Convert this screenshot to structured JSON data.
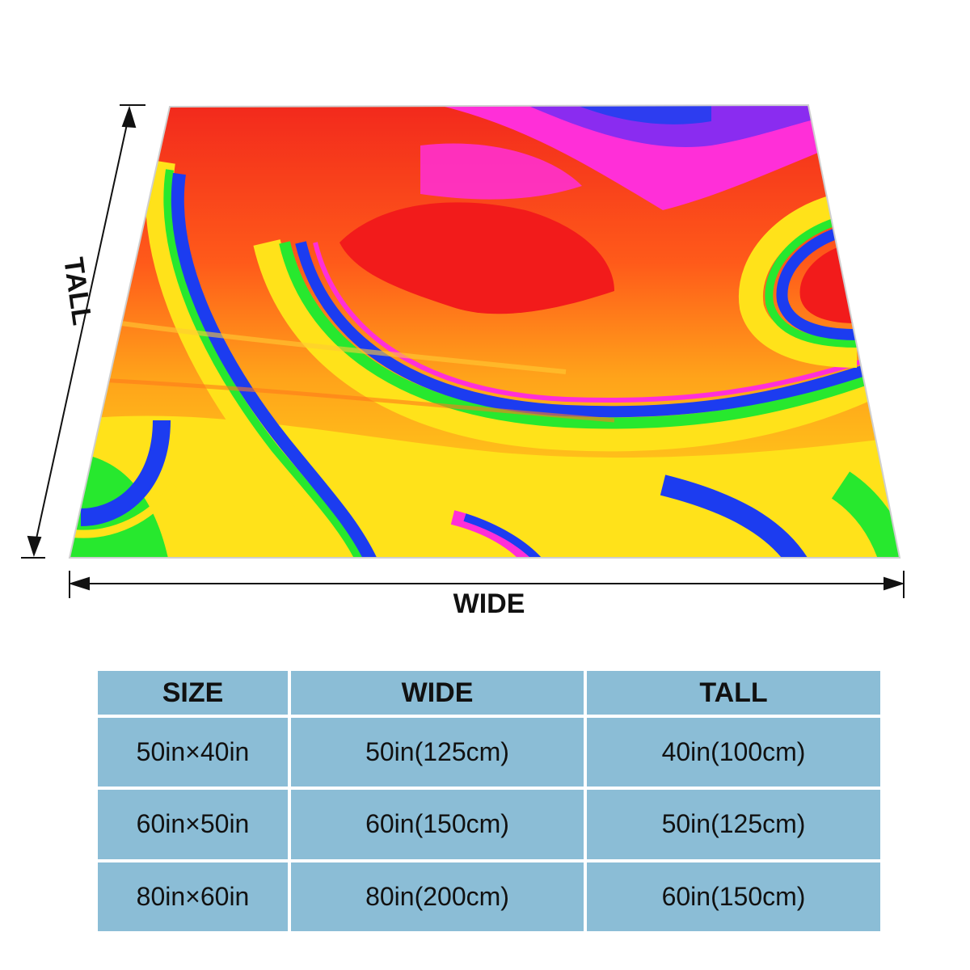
{
  "dimension_labels": {
    "tall": "TALL",
    "wide": "WIDE"
  },
  "blanket": {
    "pattern": "psychedelic rainbow swirl",
    "colors": [
      "#f21b1b",
      "#ff2fd8",
      "#1c3cf0",
      "#1ee81e",
      "#ffe21a",
      "#ff8a1a"
    ]
  },
  "size_table": {
    "headers": [
      "SIZE",
      "WIDE",
      "TALL"
    ],
    "rows": [
      [
        "50in×40in",
        "50in(125cm)",
        "40in(100cm)"
      ],
      [
        "60in×50in",
        "60in(150cm)",
        "50in(125cm)"
      ],
      [
        "80in×60in",
        "80in(200cm)",
        "60in(150cm)"
      ]
    ],
    "cell_color": "#8bbdd6"
  }
}
